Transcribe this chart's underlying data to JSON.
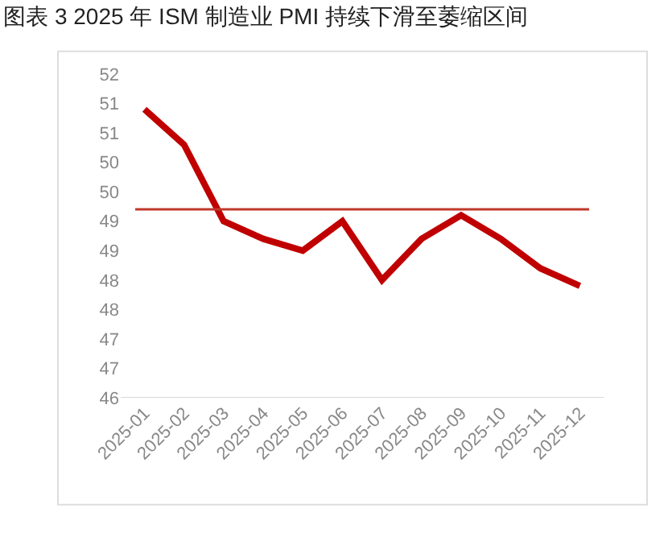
{
  "chart_data": {
    "type": "line",
    "title": "图表 3 2025 年 ISM 制造业 PMI 持续下滑至萎缩区间",
    "categories": [
      "2025-01",
      "2025-02",
      "2025-03",
      "2025-04",
      "2025-05",
      "2025-06",
      "2025-07",
      "2025-08",
      "2025-09",
      "2025-10",
      "2025-11",
      "2025-12"
    ],
    "series": [
      {
        "color": "#c00000",
        "values": [
          50.9,
          50.3,
          49.0,
          48.7,
          48.5,
          49.0,
          48.0,
          48.7,
          49.1,
          48.7,
          48.2,
          47.9
        ]
      }
    ],
    "ylim": [
      46,
      51.5
    ],
    "yticks": [
      46,
      {
        "value": 46.5,
        "label": "47"
      },
      47,
      {
        "value": 47.5,
        "label": "48"
      },
      48,
      {
        "value": 48.5,
        "label": "49"
      },
      49,
      {
        "value": 49.5,
        "label": "50"
      },
      50,
      {
        "value": 50.5,
        "label": "51"
      },
      51,
      {
        "value": 51.5,
        "label": "52"
      }
    ],
    "ref_lines": [
      {
        "axis": "y",
        "value": 49.2,
        "color": "#c0392b"
      }
    ],
    "marker": "none",
    "line_style": "solid"
  }
}
